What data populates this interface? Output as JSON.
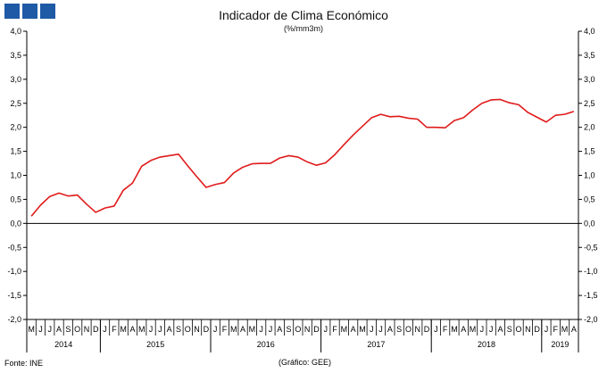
{
  "header": {
    "title": "Indicador de Clima Económico",
    "subtitle": "(%/mm3m)"
  },
  "footer": {
    "source": "Fonte: INE",
    "credit": "(Gráfico: GEE)"
  },
  "logo": {
    "color": "#1f5aa6",
    "squares": 3
  },
  "chart_data": {
    "type": "line",
    "title": "Indicador de Clima Económico",
    "subtitle": "(%/mm3m)",
    "xlabel": "",
    "ylabel": "",
    "ylim": [
      -2.0,
      4.0
    ],
    "yticks": [
      "4,0",
      "3,5",
      "3,0",
      "2,5",
      "2,0",
      "1,5",
      "1,0",
      "0,5",
      "0,0",
      "-0,5",
      "-1,0",
      "-1,5",
      "-2,0"
    ],
    "y_axis_both_sides": true,
    "grid": false,
    "line_color": "#e01b1b",
    "month_labels": [
      "M",
      "J",
      "J",
      "A",
      "S",
      "O",
      "N",
      "D",
      "J",
      "F",
      "M",
      "A",
      "M",
      "J",
      "J",
      "A",
      "S",
      "O",
      "N",
      "D",
      "J",
      "F",
      "M",
      "A",
      "M",
      "J",
      "J",
      "A",
      "S",
      "O",
      "N",
      "D",
      "J",
      "F",
      "M",
      "A",
      "M",
      "J",
      "J",
      "A",
      "S",
      "O",
      "N",
      "D",
      "J",
      "F",
      "M",
      "A",
      "M",
      "J",
      "J",
      "A",
      "S",
      "O",
      "N",
      "D",
      "J",
      "F",
      "M",
      "A"
    ],
    "years": [
      {
        "label": "2014",
        "start": 0,
        "count": 8
      },
      {
        "label": "2015",
        "start": 8,
        "count": 12
      },
      {
        "label": "2016",
        "start": 20,
        "count": 12
      },
      {
        "label": "2017",
        "start": 32,
        "count": 12
      },
      {
        "label": "2018",
        "start": 44,
        "count": 12
      },
      {
        "label": "2019",
        "start": 56,
        "count": 4
      }
    ],
    "series": [
      {
        "values": [
          0.15,
          0.38,
          0.56,
          0.63,
          0.57,
          0.59,
          0.4,
          0.23,
          0.32,
          0.36,
          0.69,
          0.84,
          1.19,
          1.31,
          1.38,
          1.41,
          1.44,
          1.2,
          0.97,
          0.75,
          0.81,
          0.85,
          1.05,
          1.17,
          1.24,
          1.25,
          1.25,
          1.36,
          1.41,
          1.38,
          1.28,
          1.21,
          1.26,
          1.43,
          1.64,
          1.84,
          2.02,
          2.2,
          2.27,
          2.22,
          2.23,
          2.19,
          2.17,
          2.0,
          2.0,
          1.99,
          2.14,
          2.2,
          2.36,
          2.5,
          2.57,
          2.58,
          2.51,
          2.47,
          2.31,
          2.21,
          2.11,
          2.25,
          2.27,
          2.33
        ]
      }
    ]
  }
}
